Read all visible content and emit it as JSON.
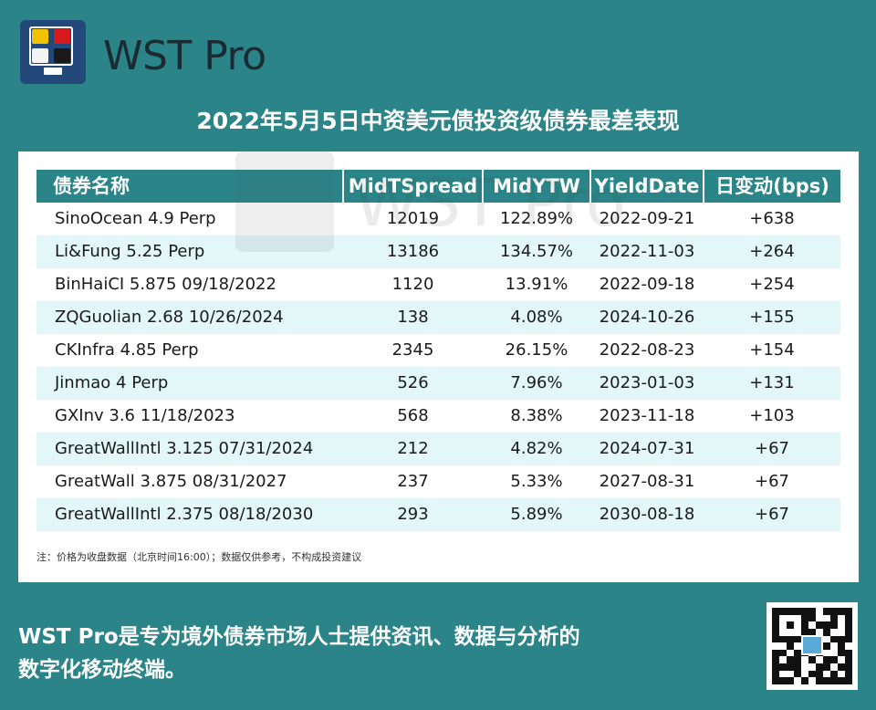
{
  "brand": {
    "name": "WST Pro"
  },
  "title": "2022年5月5日中资美元债投资级债券最差表现",
  "table": {
    "headers": [
      "债券名称",
      "MidTSpread",
      "MidYTW",
      "YieldDate",
      "日变动(bps)"
    ],
    "rows": [
      [
        "SinoOcean 4.9 Perp",
        "12019",
        "122.89%",
        "2022-09-21",
        "+638"
      ],
      [
        "Li&Fung 5.25 Perp",
        "13186",
        "134.57%",
        "2022-11-03",
        "+264"
      ],
      [
        "BinHaiCI 5.875 09/18/2022",
        "1120",
        "13.91%",
        "2022-09-18",
        "+254"
      ],
      [
        "ZQGuolian 2.68 10/26/2024",
        "138",
        "4.08%",
        "2024-10-26",
        "+155"
      ],
      [
        "CKInfra 4.85 Perp",
        "2345",
        "26.15%",
        "2022-08-23",
        "+154"
      ],
      [
        "Jinmao 4 Perp",
        "526",
        "7.96%",
        "2023-01-03",
        "+131"
      ],
      [
        "GXInv 3.6 11/18/2023",
        "568",
        "8.38%",
        "2023-11-18",
        "+103"
      ],
      [
        "GreatWallIntl 3.125 07/31/2024",
        "212",
        "4.82%",
        "2024-07-31",
        "+67"
      ],
      [
        "GreatWall 3.875 08/31/2027",
        "237",
        "5.33%",
        "2027-08-31",
        "+67"
      ],
      [
        "GreatWallIntl 2.375 08/18/2030",
        "293",
        "5.89%",
        "2030-08-18",
        "+67"
      ]
    ]
  },
  "note": "注：价格为收盘数据（北京时间16:00）；数据仅供参考，不构成投资建议",
  "footer": {
    "line1": "WST Pro是专为境外债券市场人士提供资讯、数据与分析的",
    "line2": "数字化移动终端。"
  },
  "watermark": {
    "text": "WST Pro"
  },
  "colors": {
    "background": "#2a8488",
    "header": "#2a8488",
    "stripe": "#e3f7f9",
    "logo": "#23497a"
  },
  "icons": {
    "logo": "wst-pro-logo-icon",
    "qr": "qr-code-icon"
  }
}
